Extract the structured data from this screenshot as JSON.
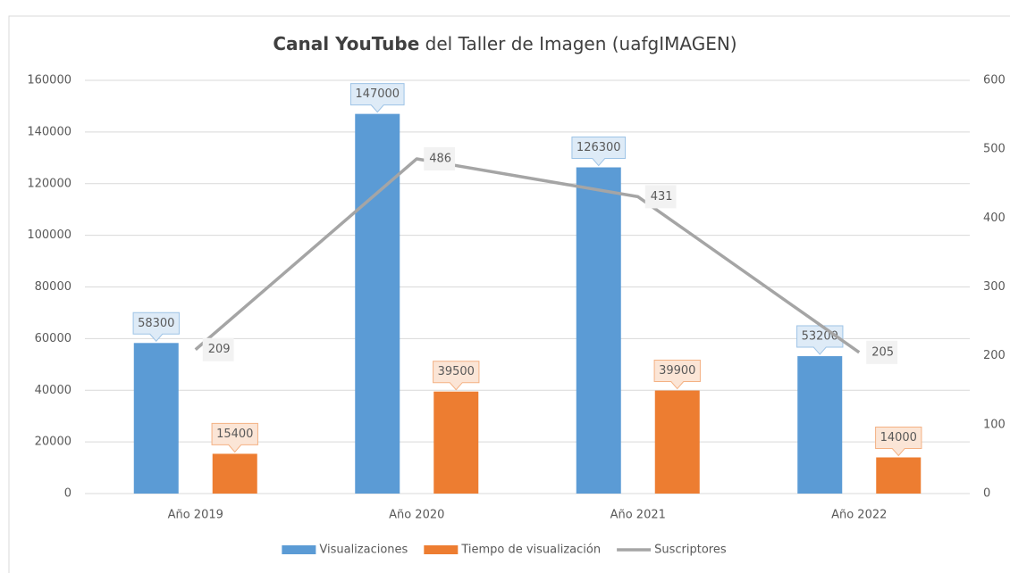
{
  "chart_data": {
    "type": "bar",
    "title": [
      "Canal YouTube",
      "del Taller de Imagen (uafgIMAGEN)"
    ],
    "categories": [
      "Año 2019",
      "Año 2020",
      "Año 2021",
      "Año 2022"
    ],
    "series": [
      {
        "name": "Visualizaciones",
        "color": "#5b9bd5",
        "values": [
          58300,
          147000,
          126300,
          53200
        ]
      },
      {
        "name": "Tiempo de visualización",
        "color": "#ed7d31",
        "values": [
          15400,
          39500,
          39900,
          14000
        ]
      },
      {
        "name": "Suscriptores",
        "color": "#a5a5a5",
        "type": "line",
        "axis": "y2",
        "values": [
          209,
          486,
          431,
          205
        ]
      }
    ],
    "ylim": [
      0,
      160000
    ],
    "yticks": [
      0,
      20000,
      40000,
      60000,
      80000,
      100000,
      120000,
      140000,
      160000
    ],
    "y2lim": [
      0,
      600
    ],
    "y2ticks": [
      0,
      100,
      200,
      300,
      400,
      500,
      600
    ],
    "grid": true,
    "legend": "bottom"
  }
}
